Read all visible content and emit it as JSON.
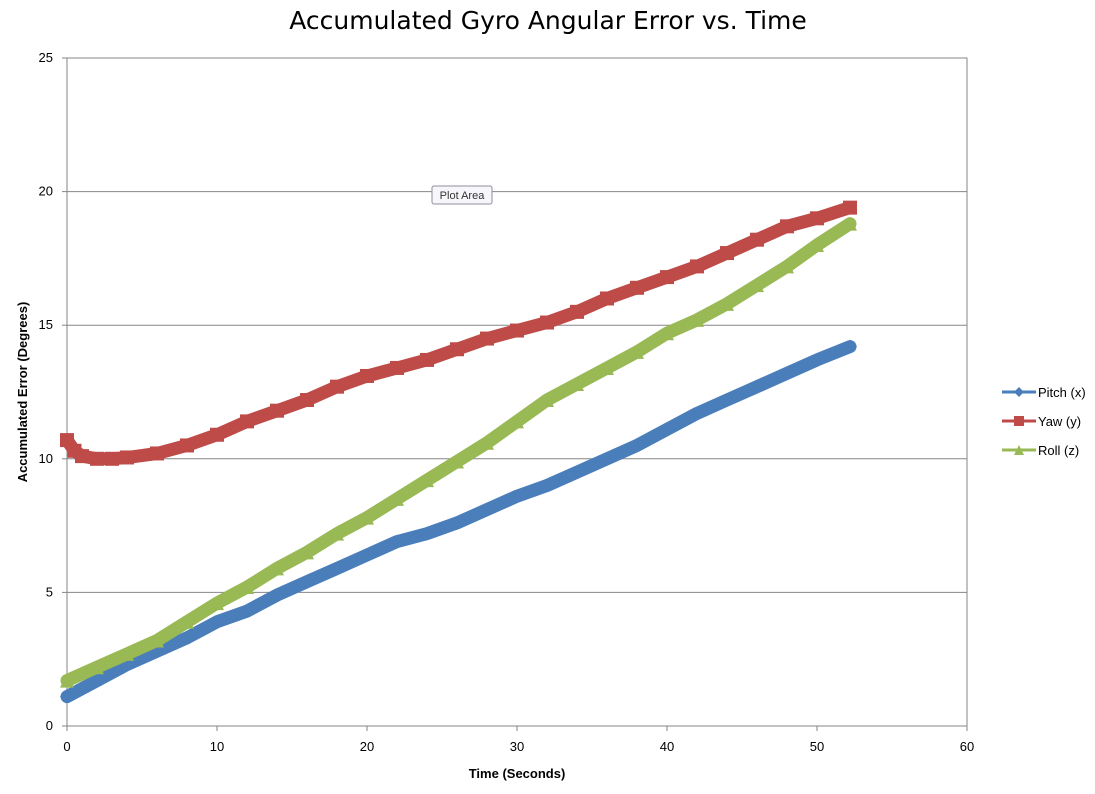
{
  "chart_data": {
    "type": "scatter",
    "title": "Accumulated Gyro Angular Error vs. Time",
    "xlabel": "Time (Seconds)",
    "ylabel": "Accumulated Error (Degrees)",
    "xlim": [
      0,
      60
    ],
    "ylim": [
      0,
      25
    ],
    "xticks": [
      "0",
      "10",
      "20",
      "30",
      "40",
      "50",
      "60"
    ],
    "yticks": [
      "0",
      "5",
      "10",
      "15",
      "20",
      "25"
    ],
    "grid": "horizontal",
    "legend_position": "right",
    "tooltip": "Plot Area",
    "series": [
      {
        "name": "Pitch (x)",
        "color": "#4a7ebb",
        "marker": "diamond",
        "x": [
          0,
          2,
          4,
          6,
          8,
          10,
          12,
          14,
          16,
          18,
          20,
          22,
          24,
          26,
          28,
          30,
          32,
          34,
          36,
          38,
          40,
          42,
          44,
          46,
          48,
          50,
          52.2
        ],
        "y": [
          1.1,
          1.7,
          2.3,
          2.8,
          3.3,
          3.9,
          4.3,
          4.9,
          5.4,
          5.9,
          6.4,
          6.9,
          7.2,
          7.6,
          8.1,
          8.6,
          9.0,
          9.5,
          10.0,
          10.5,
          11.1,
          11.7,
          12.2,
          12.7,
          13.2,
          13.7,
          14.2
        ]
      },
      {
        "name": "Yaw (y)",
        "color": "#be4b48",
        "marker": "square",
        "x": [
          0,
          0.5,
          1,
          2,
          3,
          4,
          6,
          8,
          10,
          12,
          14,
          16,
          18,
          20,
          22,
          24,
          26,
          28,
          30,
          32,
          34,
          36,
          38,
          40,
          42,
          44,
          46,
          48,
          50,
          52.2
        ],
        "y": [
          10.7,
          10.3,
          10.1,
          10.0,
          10.0,
          10.05,
          10.2,
          10.5,
          10.9,
          11.4,
          11.8,
          12.2,
          12.7,
          13.1,
          13.4,
          13.7,
          14.1,
          14.5,
          14.8,
          15.1,
          15.5,
          16.0,
          16.4,
          16.8,
          17.2,
          17.7,
          18.2,
          18.7,
          19.0,
          19.4
        ]
      },
      {
        "name": "Roll (z)",
        "color": "#98b954",
        "marker": "triangle",
        "x": [
          0,
          2,
          4,
          6,
          8,
          10,
          12,
          14,
          16,
          18,
          20,
          22,
          24,
          26,
          28,
          30,
          32,
          34,
          36,
          38,
          40,
          42,
          44,
          46,
          48,
          50,
          52.2
        ],
        "y": [
          1.7,
          2.2,
          2.7,
          3.2,
          3.9,
          4.6,
          5.2,
          5.9,
          6.5,
          7.2,
          7.8,
          8.5,
          9.2,
          9.9,
          10.6,
          11.4,
          12.2,
          12.8,
          13.4,
          14.0,
          14.7,
          15.2,
          15.8,
          16.5,
          17.2,
          18.0,
          18.8
        ]
      }
    ]
  }
}
